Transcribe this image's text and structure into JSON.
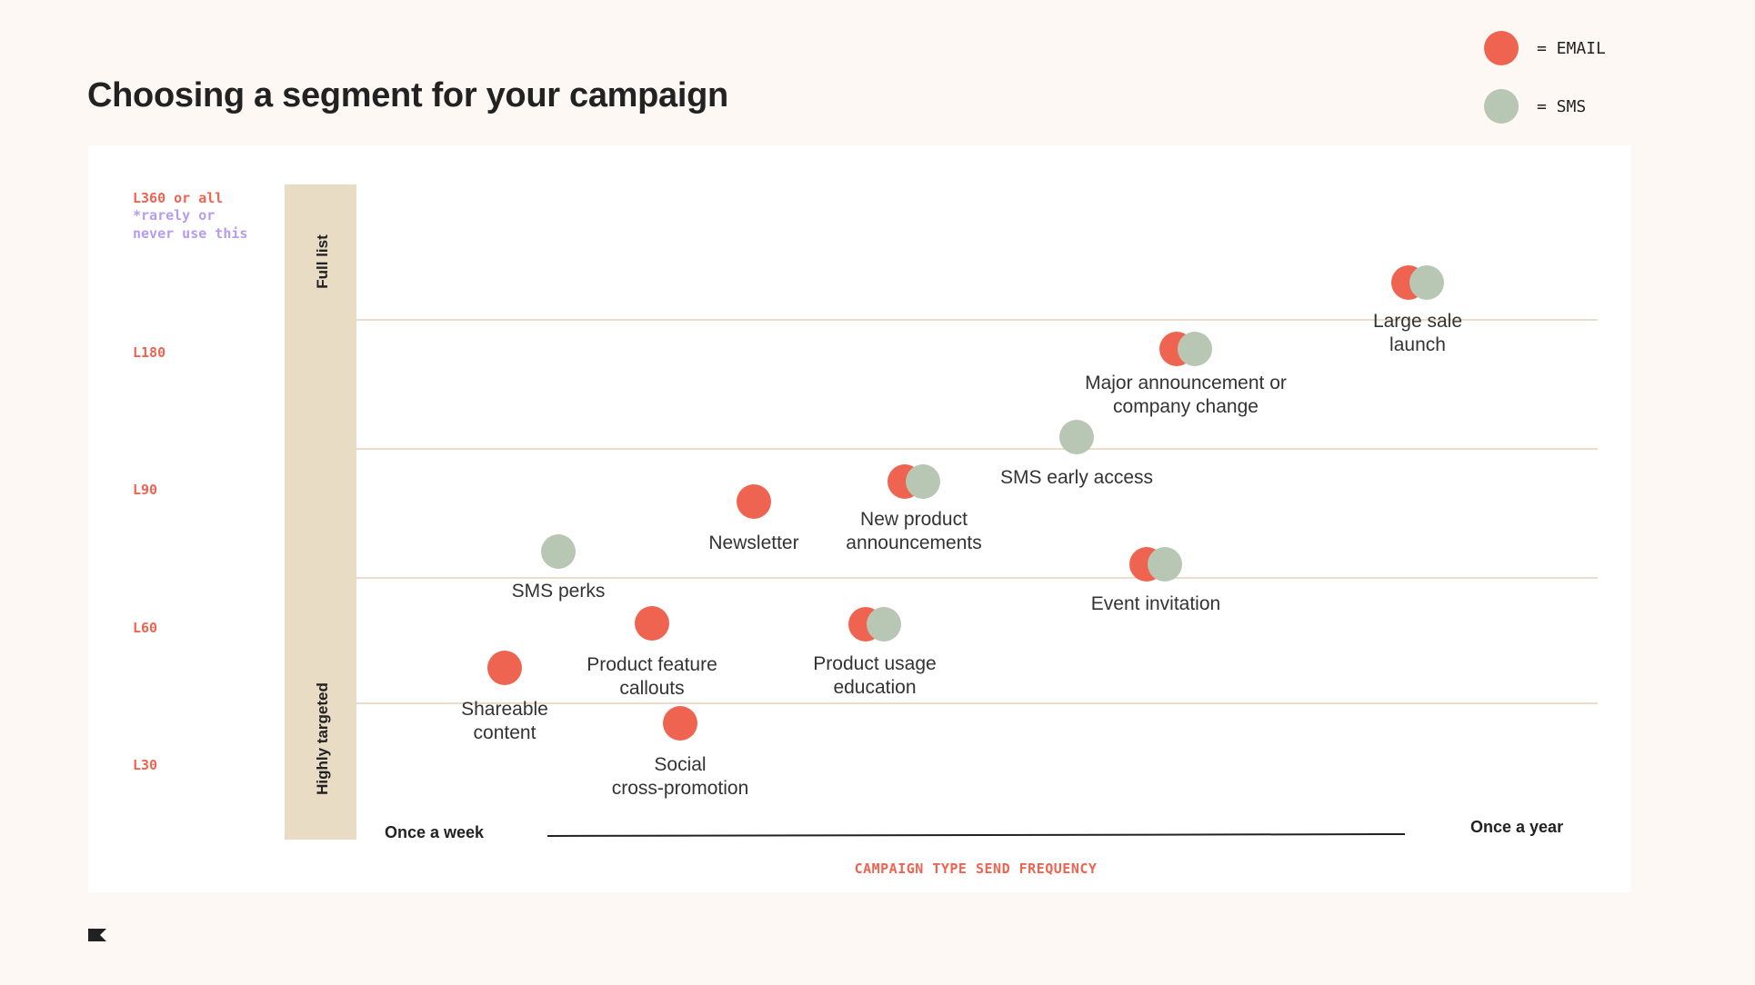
{
  "title": "Choosing a segment for your campaign",
  "legend": [
    {
      "label": "= EMAIL",
      "color": "#ef6450"
    },
    {
      "label": "= SMS",
      "color": "#b8c6b4"
    }
  ],
  "tiers": {
    "top": "L360 or all",
    "top_note_1": "*rarely or",
    "top_note_2": "never use this",
    "l180": "L180",
    "l90": "L90",
    "l60": "L60",
    "l30": "L30"
  },
  "band": {
    "top_label": "Full list",
    "bottom_label": "Highly targeted"
  },
  "x_axis": {
    "left_label": "Once a week",
    "right_label": "Once a year",
    "title": "CAMPAIGN TYPE SEND FREQUENCY"
  },
  "colors": {
    "email": "#ef6450",
    "sms": "#b8c6b4",
    "band": "#e8dcc5",
    "gridline": "#eddccb"
  },
  "campaigns": [
    {
      "name": "Large sale launch",
      "channels": [
        "email",
        "sms"
      ],
      "label_lines": [
        "Large sale",
        "launch"
      ]
    },
    {
      "name": "Major announcement or company change",
      "channels": [
        "email",
        "sms"
      ],
      "label_lines": [
        "Major announcement or",
        "company change"
      ]
    },
    {
      "name": "SMS early access",
      "channels": [
        "sms"
      ],
      "label_lines": [
        "SMS early access"
      ]
    },
    {
      "name": "New product announcements",
      "channels": [
        "email",
        "sms"
      ],
      "label_lines": [
        "New product",
        "announcements"
      ]
    },
    {
      "name": "Newsletter",
      "channels": [
        "email"
      ],
      "label_lines": [
        "Newsletter"
      ]
    },
    {
      "name": "SMS perks",
      "channels": [
        "sms"
      ],
      "label_lines": [
        "SMS perks"
      ]
    },
    {
      "name": "Event invitation",
      "channels": [
        "email",
        "sms"
      ],
      "label_lines": [
        "Event invitation"
      ]
    },
    {
      "name": "Product feature callouts",
      "channels": [
        "email"
      ],
      "label_lines": [
        "Product feature",
        "callouts"
      ]
    },
    {
      "name": "Product usage education",
      "channels": [
        "email",
        "sms"
      ],
      "label_lines": [
        "Product usage",
        "education"
      ]
    },
    {
      "name": "Shareable content",
      "channels": [
        "email"
      ],
      "label_lines": [
        "Shareable",
        "content"
      ]
    },
    {
      "name": "Social cross-promotion",
      "channels": [
        "email"
      ],
      "label_lines": [
        "Social",
        "cross-promotion"
      ]
    }
  ]
}
